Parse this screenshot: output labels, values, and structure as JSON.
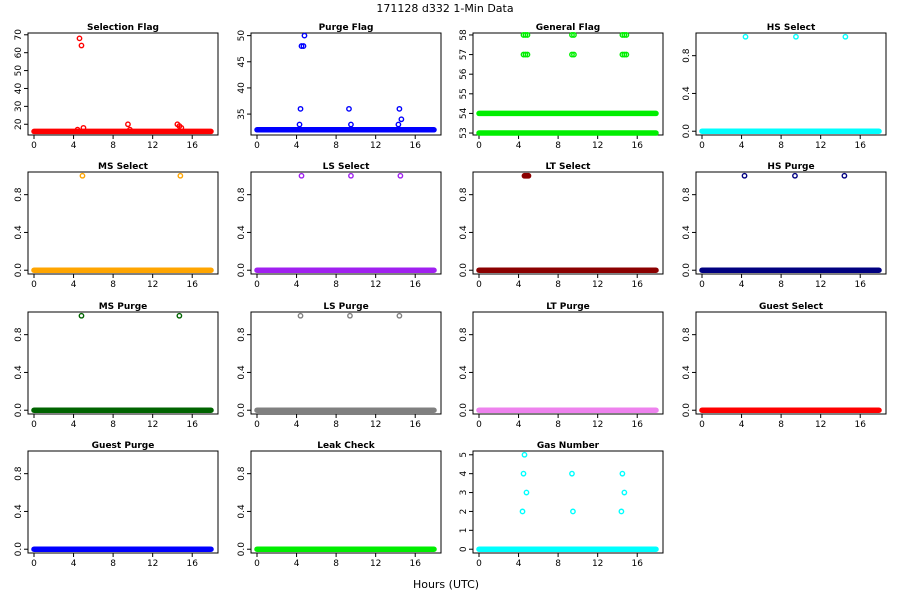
{
  "title": "171128   d332   1-Min Data",
  "xlabel": "Hours (UTC)",
  "chart_data": [
    {
      "type": "scatter",
      "title": "Selection Flag",
      "color": "#ff0000",
      "xlim": [
        0,
        18
      ],
      "ylim": [
        14,
        71
      ],
      "yticks": [
        20,
        30,
        40,
        50,
        60,
        70
      ],
      "base": [
        16
      ],
      "points": [
        [
          4.4,
          17
        ],
        [
          4.6,
          68
        ],
        [
          4.8,
          64
        ],
        [
          5.0,
          18
        ],
        [
          9.5,
          20
        ],
        [
          9.7,
          17
        ],
        [
          14.5,
          20
        ],
        [
          14.7,
          19
        ],
        [
          14.9,
          18
        ]
      ]
    },
    {
      "type": "scatter",
      "title": "Purge Flag",
      "color": "#0000ff",
      "xlim": [
        0,
        18
      ],
      "ylim": [
        31,
        50.5
      ],
      "yticks": [
        35,
        40,
        45,
        50
      ],
      "base": [
        32
      ],
      "points": [
        [
          4.3,
          33
        ],
        [
          4.4,
          36
        ],
        [
          4.5,
          48
        ],
        [
          4.7,
          48
        ],
        [
          4.8,
          50
        ],
        [
          9.3,
          36
        ],
        [
          9.5,
          33
        ],
        [
          14.3,
          33
        ],
        [
          14.4,
          36
        ],
        [
          14.6,
          34
        ]
      ]
    },
    {
      "type": "scatter",
      "title": "General Flag",
      "color": "#00ee00",
      "xlim": [
        0,
        18
      ],
      "ylim": [
        52.9,
        58.1
      ],
      "yticks": [
        53,
        54,
        55,
        56,
        57,
        58
      ],
      "base": [
        53,
        54
      ],
      "points": [
        [
          4.5,
          57
        ],
        [
          4.7,
          57
        ],
        [
          4.9,
          57
        ],
        [
          4.5,
          58
        ],
        [
          4.7,
          58
        ],
        [
          4.9,
          58
        ],
        [
          9.4,
          57
        ],
        [
          9.6,
          57
        ],
        [
          9.4,
          58
        ],
        [
          9.6,
          58
        ],
        [
          14.5,
          57
        ],
        [
          14.7,
          57
        ],
        [
          14.9,
          57
        ],
        [
          14.5,
          58
        ],
        [
          14.7,
          58
        ],
        [
          14.9,
          58
        ]
      ]
    },
    {
      "type": "scatter",
      "title": "HS Select",
      "color": "#00ffff",
      "xlim": [
        0,
        18
      ],
      "ylim": [
        -0.04,
        1.04
      ],
      "yticks": [
        0.0,
        0.4,
        0.8
      ],
      "base": [
        0
      ],
      "points": [
        [
          4.4,
          1
        ],
        [
          9.5,
          1
        ],
        [
          14.5,
          1
        ]
      ]
    },
    {
      "type": "scatter",
      "title": "MS Select",
      "color": "#ffa500",
      "xlim": [
        0,
        18
      ],
      "ylim": [
        -0.04,
        1.04
      ],
      "yticks": [
        0.0,
        0.4,
        0.8
      ],
      "base": [
        0
      ],
      "points": [
        [
          4.9,
          1
        ],
        [
          14.8,
          1
        ]
      ]
    },
    {
      "type": "scatter",
      "title": "LS Select",
      "color": "#a020f0",
      "xlim": [
        0,
        18
      ],
      "ylim": [
        -0.04,
        1.04
      ],
      "yticks": [
        0.0,
        0.4,
        0.8
      ],
      "base": [
        0
      ],
      "points": [
        [
          4.5,
          1
        ],
        [
          9.5,
          1
        ],
        [
          14.5,
          1
        ]
      ]
    },
    {
      "type": "scatter",
      "title": "LT Select",
      "color": "#8b0000",
      "xlim": [
        0,
        18
      ],
      "ylim": [
        -0.04,
        1.04
      ],
      "yticks": [
        0.0,
        0.4,
        0.8
      ],
      "base": [
        0
      ],
      "points": [
        [
          4.6,
          1
        ],
        [
          4.7,
          1
        ],
        [
          4.8,
          1
        ],
        [
          4.9,
          1
        ],
        [
          5.0,
          1
        ]
      ]
    },
    {
      "type": "scatter",
      "title": "HS Purge",
      "color": "#000080",
      "xlim": [
        0,
        18
      ],
      "ylim": [
        -0.04,
        1.04
      ],
      "yticks": [
        0.0,
        0.4,
        0.8
      ],
      "base": [
        0
      ],
      "points": [
        [
          4.3,
          1
        ],
        [
          9.4,
          1
        ],
        [
          14.4,
          1
        ]
      ]
    },
    {
      "type": "scatter",
      "title": "MS Purge",
      "color": "#006400",
      "xlim": [
        0,
        18
      ],
      "ylim": [
        -0.04,
        1.04
      ],
      "yticks": [
        0.0,
        0.4,
        0.8
      ],
      "base": [
        0
      ],
      "points": [
        [
          4.8,
          1
        ],
        [
          14.7,
          1
        ]
      ]
    },
    {
      "type": "scatter",
      "title": "LS Purge",
      "color": "#808080",
      "xlim": [
        0,
        18
      ],
      "ylim": [
        -0.04,
        1.04
      ],
      "yticks": [
        0.0,
        0.4,
        0.8
      ],
      "base": [
        0
      ],
      "points": [
        [
          4.4,
          1
        ],
        [
          9.4,
          1
        ],
        [
          14.4,
          1
        ]
      ]
    },
    {
      "type": "scatter",
      "title": "LT Purge",
      "color": "#ee82ee",
      "xlim": [
        0,
        18
      ],
      "ylim": [
        -0.04,
        1.04
      ],
      "yticks": [
        0.0,
        0.4,
        0.8
      ],
      "base": [
        0
      ],
      "points": []
    },
    {
      "type": "scatter",
      "title": "Guest Select",
      "color": "#ff0000",
      "xlim": [
        0,
        18
      ],
      "ylim": [
        -0.04,
        1.04
      ],
      "yticks": [
        0.0,
        0.4,
        0.8
      ],
      "base": [
        0
      ],
      "points": []
    },
    {
      "type": "scatter",
      "title": "Guest Purge",
      "color": "#0000ff",
      "xlim": [
        0,
        18
      ],
      "ylim": [
        -0.04,
        1.04
      ],
      "yticks": [
        0.0,
        0.4,
        0.8
      ],
      "base": [
        0
      ],
      "points": []
    },
    {
      "type": "scatter",
      "title": "Leak Check",
      "color": "#00ee00",
      "xlim": [
        0,
        18
      ],
      "ylim": [
        -0.04,
        1.04
      ],
      "yticks": [
        0.0,
        0.4,
        0.8
      ],
      "base": [
        0
      ],
      "points": []
    },
    {
      "type": "scatter",
      "title": "Gas Number",
      "color": "#00ffff",
      "xlim": [
        0,
        18
      ],
      "ylim": [
        -0.2,
        5.2
      ],
      "yticks": [
        0,
        1,
        2,
        3,
        4,
        5
      ],
      "base": [
        0
      ],
      "points": [
        [
          4.4,
          2
        ],
        [
          4.5,
          4
        ],
        [
          4.6,
          5
        ],
        [
          4.8,
          3
        ],
        [
          9.5,
          2
        ],
        [
          9.4,
          4
        ],
        [
          14.4,
          2
        ],
        [
          14.5,
          4
        ],
        [
          14.7,
          3
        ]
      ]
    }
  ]
}
